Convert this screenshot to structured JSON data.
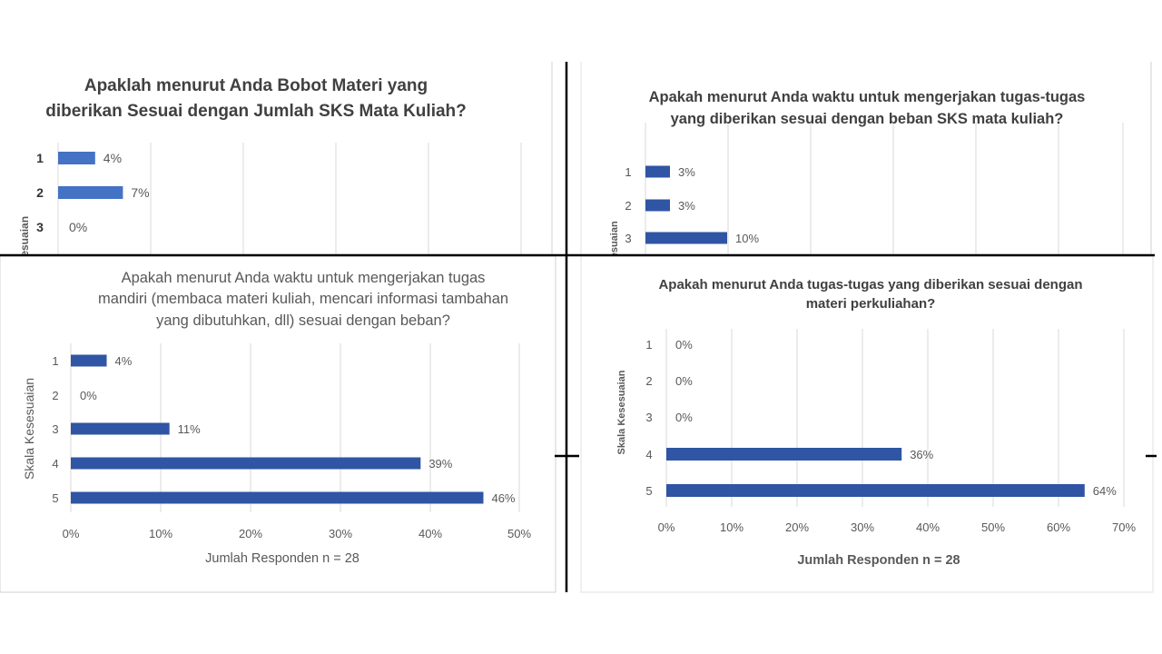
{
  "chart_data": [
    {
      "type": "bar",
      "orientation": "horizontal",
      "title": "Apaklah menurut Anda Bobot Materi yang diberikan Sesuai dengan Jumlah SKS Mata Kuliah?",
      "title_lines": [
        "Apaklah menurut Anda Bobot Materi yang",
        "diberikan Sesuai dengan Jumlah SKS Mata Kuliah?"
      ],
      "ylabel": "la Kesesuaian",
      "categories": [
        "1",
        "2",
        "3"
      ],
      "values": [
        4,
        7,
        0
      ],
      "value_labels": [
        "4%",
        "7%",
        "0%"
      ],
      "grid": true
    },
    {
      "type": "bar",
      "orientation": "horizontal",
      "title": "Apakah menurut Anda waktu untuk mengerjakan tugas-tugas yang diberikan sesuai dengan beban SKS mata kuliah?",
      "title_lines": [
        "Apakah menurut Anda waktu untuk mengerjakan tugas-tugas",
        "yang diberikan sesuai dengan beban SKS mata kuliah?"
      ],
      "ylabel": "la Kesesuaian",
      "categories": [
        "1",
        "2",
        "3"
      ],
      "values": [
        3,
        3,
        10
      ],
      "value_labels": [
        "3%",
        "3%",
        "10%"
      ],
      "grid": true
    },
    {
      "type": "bar",
      "orientation": "horizontal",
      "title": "Apakah menurut Anda waktu untuk mengerjakan tugas mandiri (membaca materi kuliah, mencari informasi tambahan yang dibutuhkan, dll) sesuai dengan beban?",
      "title_lines": [
        "Apakah menurut Anda waktu untuk mengerjakan tugas",
        "mandiri (membaca materi kuliah, mencari informasi tambahan",
        "yang dibutuhkan, dll) sesuai dengan beban?"
      ],
      "ylabel": "Skala Kesesuaian",
      "xlabel": "Jumlah Responden n = 28",
      "categories": [
        "1",
        "2",
        "3",
        "4",
        "5"
      ],
      "values": [
        4,
        0,
        11,
        39,
        46
      ],
      "value_labels": [
        "4%",
        "0%",
        "11%",
        "39%",
        "46%"
      ],
      "xlim": [
        0,
        50
      ],
      "xticks": [
        "0%",
        "10%",
        "20%",
        "30%",
        "40%",
        "50%"
      ],
      "grid": true
    },
    {
      "type": "bar",
      "orientation": "horizontal",
      "title": "Apakah menurut Anda tugas-tugas yang diberikan sesuai dengan materi perkuliahan?",
      "title_lines": [
        "Apakah menurut Anda tugas-tugas yang diberikan sesuai dengan",
        "materi perkuliahan?"
      ],
      "ylabel": "Skala Kesesuaian",
      "xlabel": "Jumlah Responden n = 28",
      "categories": [
        "1",
        "2",
        "3",
        "4",
        "5"
      ],
      "values": [
        0,
        0,
        0,
        36,
        64
      ],
      "value_labels": [
        "0%",
        "0%",
        "0%",
        "36%",
        "64%"
      ],
      "xlim": [
        0,
        70
      ],
      "xticks": [
        "0%",
        "10%",
        "20%",
        "30%",
        "40%",
        "50%",
        "60%",
        "70%"
      ],
      "grid": true
    }
  ],
  "colors": {
    "bar_light": "#4472c4",
    "bar_dark": "#2f55a4",
    "grid": "#d9d9d9",
    "divider": "#000000",
    "text": "#595959",
    "title": "#404040"
  }
}
